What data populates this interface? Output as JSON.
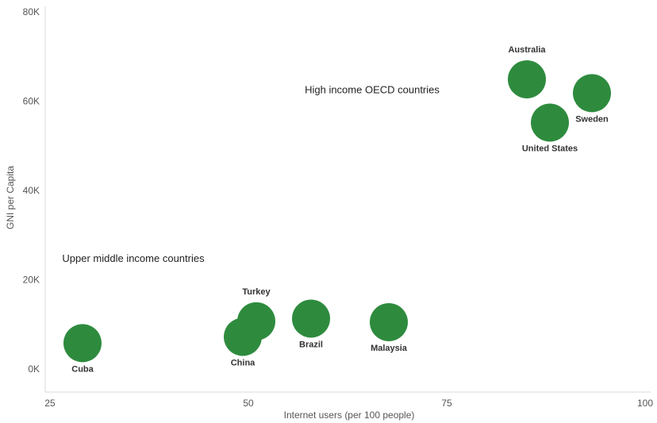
{
  "chart_data": {
    "type": "scatter",
    "xlabel": "Internet users (per 100 people)",
    "ylabel": "GNI per Capita",
    "xlim": [
      25,
      100
    ],
    "ylim": [
      -5000,
      80000
    ],
    "x_ticks": [
      25,
      50,
      75,
      100
    ],
    "x_tick_labels": [
      "25",
      "50",
      "75",
      "100"
    ],
    "y_ticks": [
      0,
      20000,
      40000,
      60000,
      80000
    ],
    "y_tick_labels": [
      "0K",
      "20K",
      "40K",
      "60K",
      "80K"
    ],
    "grid": false,
    "marker_color": "#2e8b3e",
    "points": [
      {
        "label": "Cuba",
        "x": 29.1,
        "y": 5800,
        "label_pos": "below"
      },
      {
        "label": "China",
        "x": 49.3,
        "y": 7200,
        "label_pos": "below"
      },
      {
        "label": "Turkey",
        "x": 51.0,
        "y": 10700,
        "label_pos": "above"
      },
      {
        "label": "Brazil",
        "x": 57.9,
        "y": 11300,
        "label_pos": "below"
      },
      {
        "label": "Malaysia",
        "x": 67.7,
        "y": 10500,
        "label_pos": "below"
      },
      {
        "label": "Australia",
        "x": 85.1,
        "y": 64900,
        "label_pos": "above"
      },
      {
        "label": "Sweden",
        "x": 93.3,
        "y": 61800,
        "label_pos": "below"
      },
      {
        "label": "United States",
        "x": 88.0,
        "y": 55200,
        "label_pos": "below"
      }
    ],
    "annotations": [
      {
        "text": "High income OECD countries",
        "x": 65.6,
        "y": 62500
      },
      {
        "text": "Upper middle income countries",
        "x": 35.5,
        "y": 24700
      }
    ]
  }
}
